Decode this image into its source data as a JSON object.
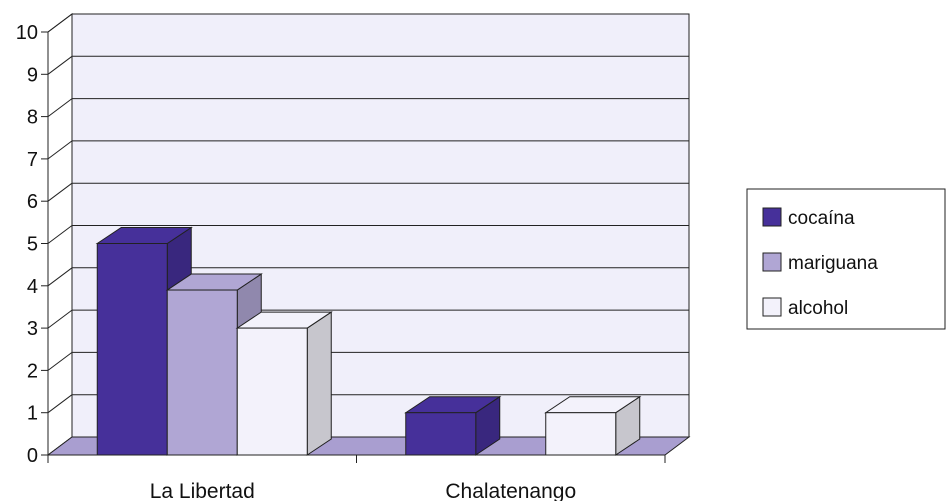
{
  "chart_data": {
    "type": "bar",
    "categories": [
      "La Libertad",
      "Chalatenango"
    ],
    "series": [
      {
        "name": "cocaína",
        "values": [
          5,
          1
        ]
      },
      {
        "name": "mariguana",
        "values": [
          3.9,
          0
        ]
      },
      {
        "name": "alcohol",
        "values": [
          3,
          1
        ]
      }
    ],
    "ylim": [
      0,
      10
    ],
    "yticks": [
      "0",
      "1",
      "2",
      "3",
      "4",
      "5",
      "6",
      "7",
      "8",
      "9",
      "10"
    ],
    "grid": true,
    "legend_position": "right",
    "colors": {
      "cocaína": "#46309a",
      "mariguana": "#b0a6d4",
      "alcohol": "#f3f2fb",
      "plot_wall": "#f0effa",
      "floor": "#a99ed0",
      "outline": "#222222"
    }
  }
}
